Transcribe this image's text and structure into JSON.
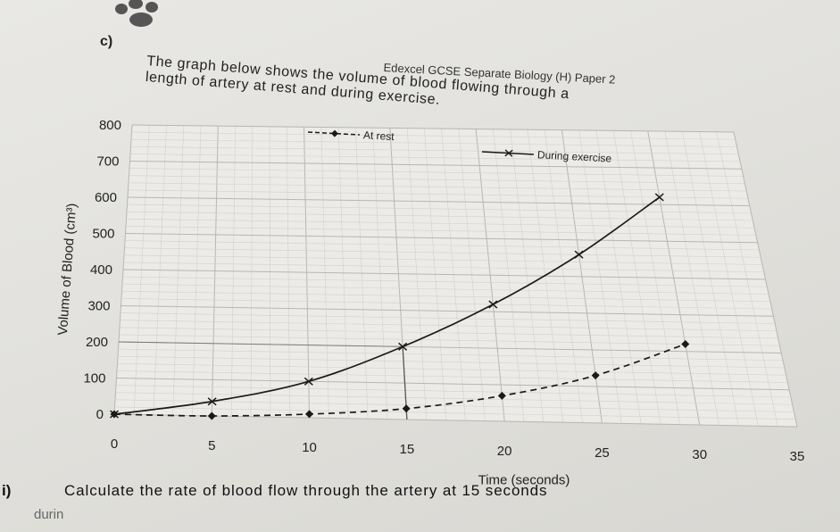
{
  "header": "Edexcel GCSE Separate Biology (H) Paper 2",
  "question_label": "c)",
  "intro_line1": "The graph below shows the volume of blood flowing through a",
  "intro_line2": "length of artery at rest and during exercise.",
  "question_number": "i)",
  "question_text": "Calculate the rate of blood flow through the artery at 15 seconds",
  "question_continuation": "durin",
  "chart_data": {
    "type": "line",
    "xlabel": "Time (seconds)",
    "ylabel": "Volume of Blood (cm³)",
    "xlim": [
      0,
      35
    ],
    "ylim": [
      0,
      800
    ],
    "x_ticks": [
      0,
      5,
      10,
      15,
      20,
      25,
      30,
      35
    ],
    "y_ticks": [
      0,
      100,
      200,
      300,
      400,
      500,
      600,
      700,
      800
    ],
    "grid": true,
    "series": [
      {
        "name": "At rest",
        "marker": "diamond",
        "style": "dashed",
        "color": "#1a1a1a",
        "x": [
          0,
          5,
          10,
          15,
          20,
          25,
          30
        ],
        "y": [
          0,
          0,
          10,
          30,
          70,
          130,
          220
        ]
      },
      {
        "name": "During exercise",
        "marker": "cross",
        "style": "solid",
        "color": "#1a1a1a",
        "x": [
          0,
          5,
          10,
          15,
          20,
          25,
          30
        ],
        "y": [
          0,
          40,
          100,
          200,
          320,
          460,
          620
        ]
      }
    ],
    "annotations": {
      "x_mark": 15,
      "y_mark": 200
    }
  }
}
